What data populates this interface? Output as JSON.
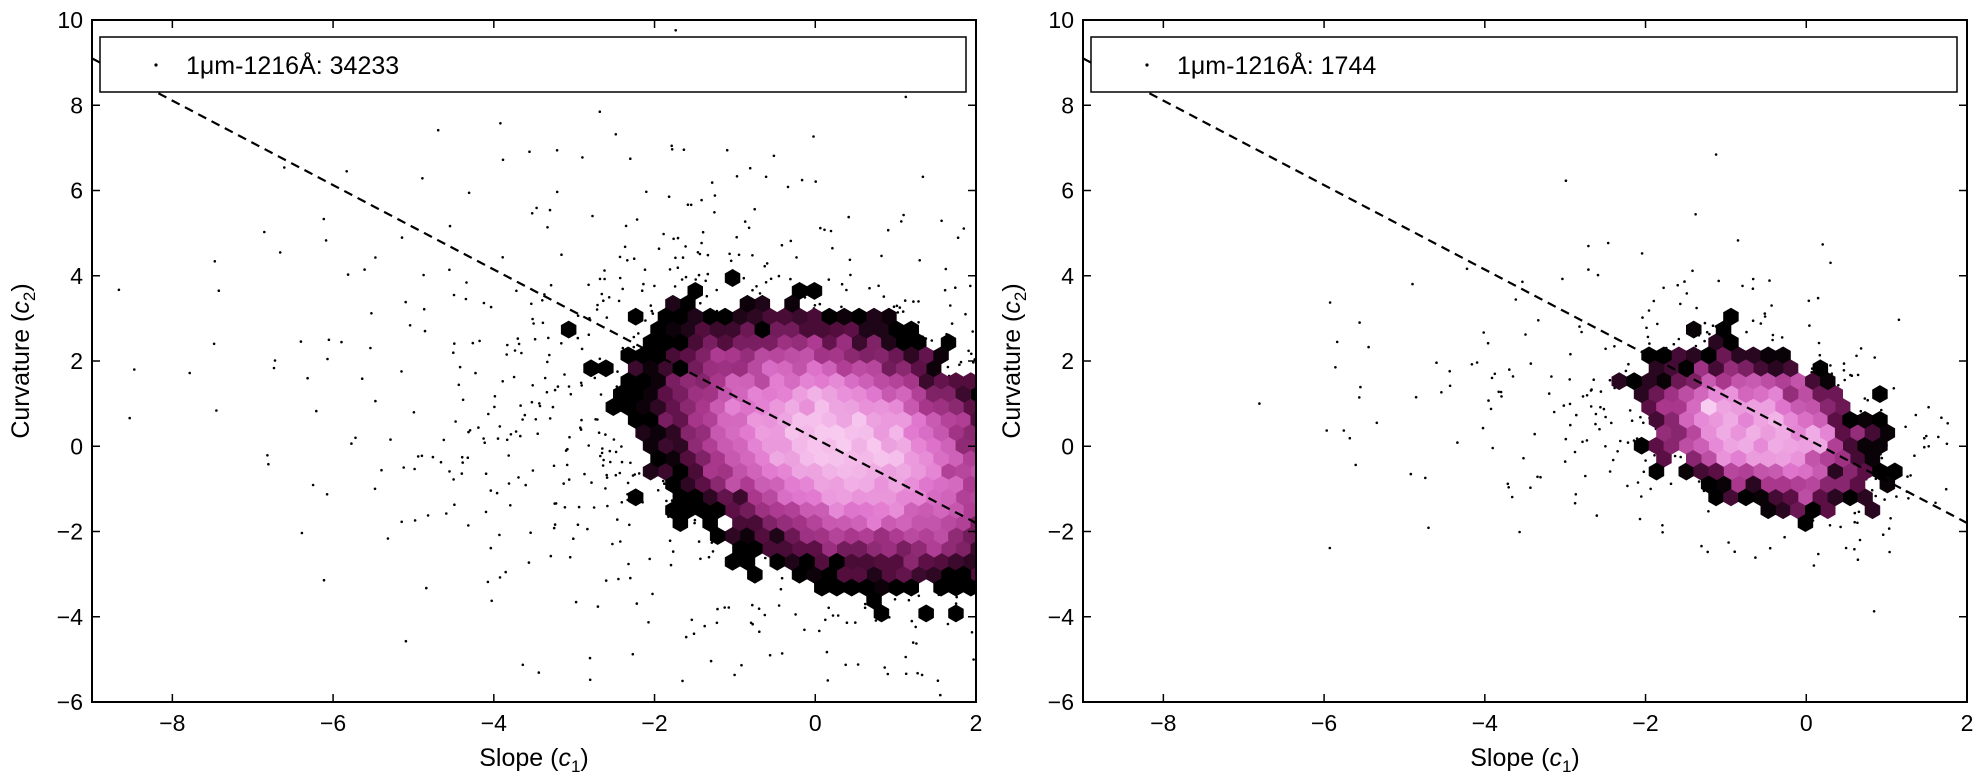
{
  "chart_data": [
    {
      "type": "scatter",
      "panel": "left",
      "xlabel": "Slope (c1)",
      "ylabel": "Curvature (c2)",
      "xlim": [
        -9,
        2
      ],
      "ylim": [
        -6,
        10
      ],
      "xticks": [
        "−8",
        "−6",
        "−4",
        "−2",
        "0",
        "2"
      ],
      "yticks": [
        "−6",
        "−4",
        "−2",
        "0",
        "2",
        "4",
        "6",
        "8",
        "10"
      ],
      "legend": {
        "label": "1μm-1216Å: 34233",
        "placement": "top"
      },
      "count": 34233,
      "density": "hexbin",
      "cluster_center": [
        0.3,
        0.0
      ],
      "cluster_spread": [
        1.0,
        1.3
      ],
      "fit_line": {
        "style": "dashed",
        "points": [
          [
            -9,
            9.1
          ],
          [
            2,
            -1.8
          ]
        ]
      },
      "colormap": [
        "#000000",
        "#5a0f44",
        "#a8378c",
        "#e178cf",
        "#f8cbf0"
      ]
    },
    {
      "type": "scatter",
      "panel": "right",
      "xlabel": "Slope (c1)",
      "ylabel": "Curvature (c2)",
      "xlim": [
        -9,
        2
      ],
      "ylim": [
        -6,
        10
      ],
      "xticks": [
        "−8",
        "−6",
        "−4",
        "−2",
        "0",
        "2"
      ],
      "yticks": [
        "−6",
        "−4",
        "−2",
        "0",
        "2",
        "4",
        "6",
        "8",
        "10"
      ],
      "legend": {
        "label": "1μm-1216Å: 1744",
        "placement": "top"
      },
      "count": 1744,
      "density": "hexbin",
      "cluster_center": [
        -0.6,
        0.4
      ],
      "cluster_spread": [
        0.7,
        0.9
      ],
      "fit_line": {
        "style": "dashed",
        "points": [
          [
            -9,
            9.1
          ],
          [
            2,
            -1.8
          ]
        ]
      },
      "colormap": [
        "#000000",
        "#5a0f44",
        "#a8378c",
        "#e178cf",
        "#f8cbf0"
      ]
    }
  ]
}
